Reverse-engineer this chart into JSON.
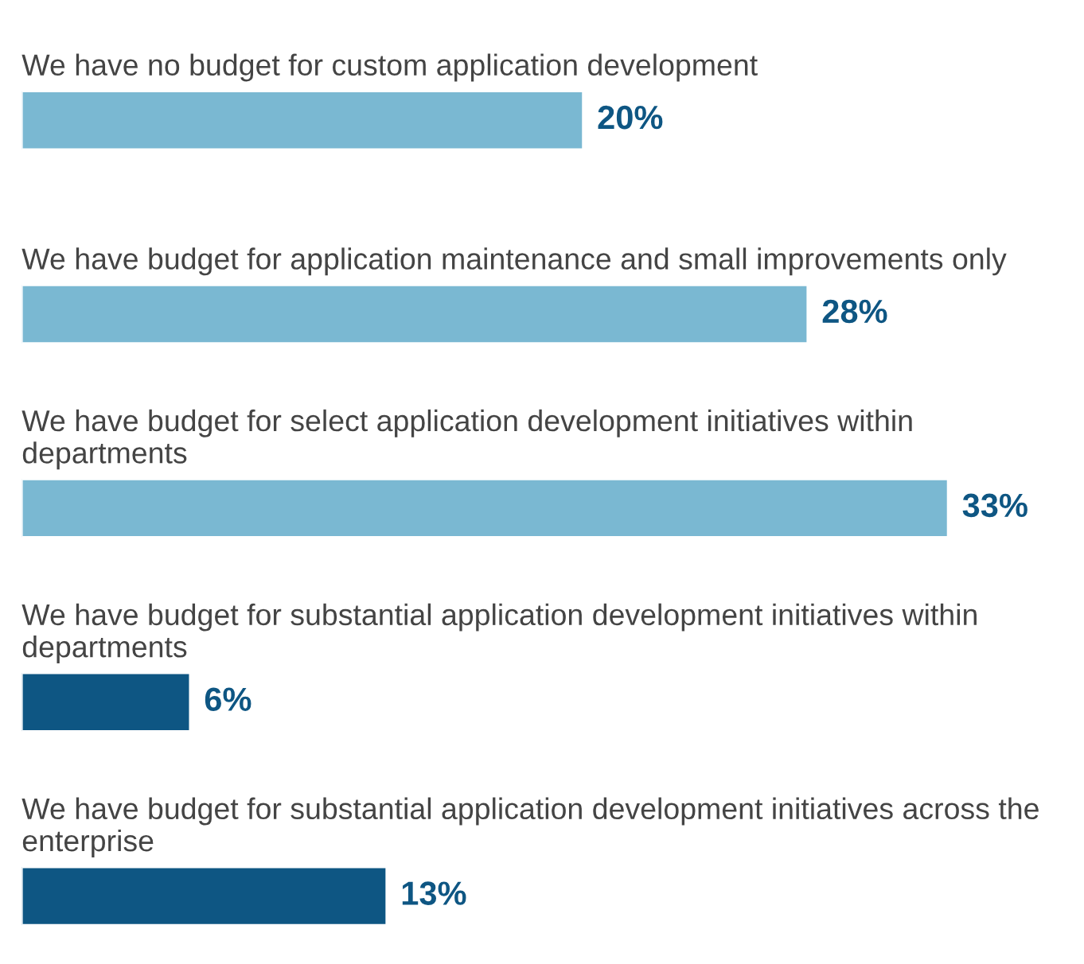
{
  "chart_data": {
    "type": "bar",
    "orientation": "horizontal",
    "categories": [
      "We have no budget for custom application development",
      "We have budget for application maintenance and small improvements only",
      "We have budget for select application development initiatives within departments",
      "We have budget for substantial application development initiatives within departments",
      "We have budget for substantial application development initiatives across the enterprise"
    ],
    "values": [
      20,
      28,
      33,
      6,
      13
    ],
    "colors": [
      "#7ab8d2",
      "#7ab8d2",
      "#7ab8d2",
      "#0e5683",
      "#0e5683"
    ],
    "value_labels": [
      "20%",
      "28%",
      "33%",
      "6%",
      "13%"
    ]
  }
}
